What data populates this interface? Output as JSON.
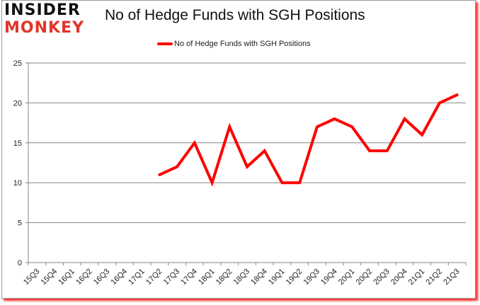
{
  "logo": {
    "line1": "INSIDER",
    "line2": "MONKEY"
  },
  "header": {
    "title": "No of Hedge Funds with SGH Positions"
  },
  "legend": {
    "label": "No of Hedge Funds with SGH Positions",
    "color": "#ff0000"
  },
  "chart_data": {
    "type": "line",
    "title": "No of Hedge Funds with SGH Positions",
    "xlabel": "",
    "ylabel": "",
    "ylim": [
      0,
      25
    ],
    "yticks": [
      0,
      5,
      10,
      15,
      20,
      25
    ],
    "grid": true,
    "legend_position": "top",
    "categories": [
      "15Q3",
      "15Q4",
      "16Q1",
      "16Q2",
      "16Q3",
      "16Q4",
      "17Q1",
      "17Q2",
      "17Q3",
      "17Q4",
      "18Q1",
      "18Q2",
      "18Q3",
      "18Q4",
      "19Q1",
      "19Q2",
      "19Q3",
      "19Q4",
      "20Q1",
      "20Q2",
      "20Q3",
      "20Q4",
      "21Q1",
      "21Q2",
      "21Q3"
    ],
    "series": [
      {
        "name": "No of Hedge Funds with SGH Positions",
        "color": "#ff0000",
        "values": [
          null,
          null,
          null,
          null,
          null,
          null,
          null,
          11,
          12,
          15,
          10,
          17,
          12,
          14,
          10,
          10,
          17,
          18,
          17,
          14,
          14,
          18,
          16,
          20,
          21
        ]
      }
    ]
  }
}
